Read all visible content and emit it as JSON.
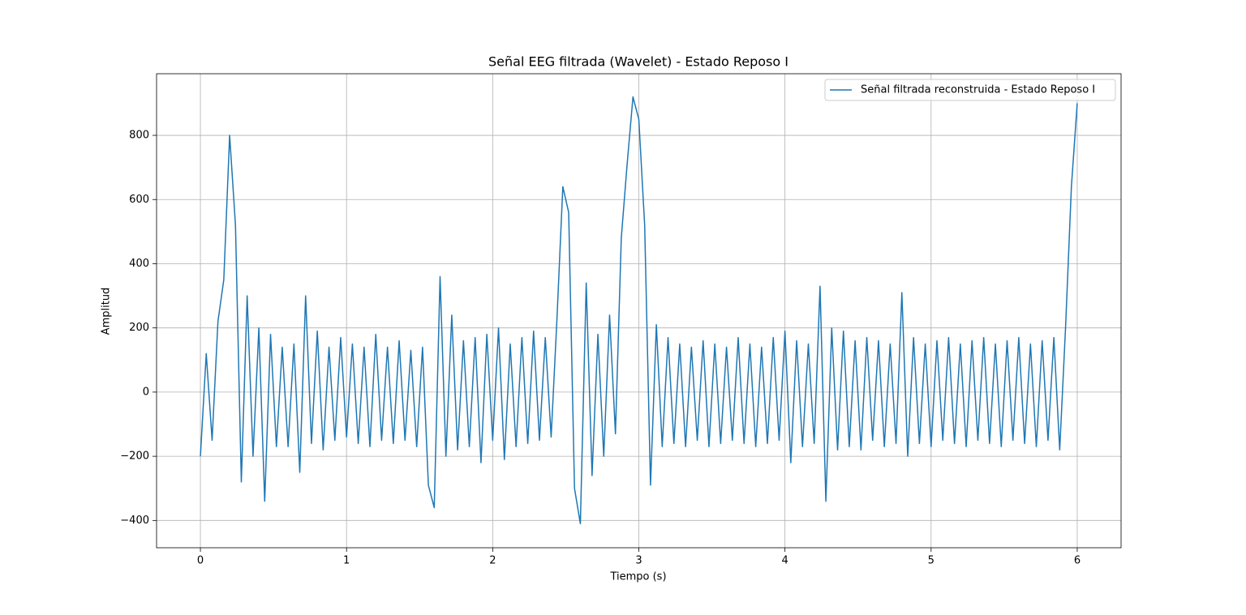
{
  "chart_data": {
    "type": "line",
    "title": "Señal EEG filtrada (Wavelet) - Estado Reposo I",
    "x_label": "Tiempo (s)",
    "y_label": "Amplitud",
    "x": [
      0,
      0.04,
      0.08,
      0.12,
      0.16,
      0.2,
      0.24,
      0.28,
      0.32,
      0.36,
      0.4,
      0.44,
      0.48,
      0.52,
      0.56,
      0.6,
      0.64,
      0.68,
      0.72,
      0.76,
      0.8,
      0.84,
      0.88,
      0.92,
      0.96,
      1,
      1.04,
      1.08,
      1.12,
      1.16,
      1.2,
      1.24,
      1.28,
      1.32,
      1.36,
      1.4,
      1.44,
      1.48,
      1.52,
      1.56,
      1.6,
      1.64,
      1.68,
      1.72,
      1.76,
      1.8,
      1.84,
      1.88,
      1.92,
      1.96,
      2,
      2.04,
      2.08,
      2.12,
      2.16,
      2.2,
      2.24,
      2.28,
      2.32,
      2.36,
      2.4,
      2.44,
      2.48,
      2.52,
      2.56,
      2.6,
      2.64,
      2.68,
      2.72,
      2.76,
      2.8,
      2.84,
      2.88,
      2.92,
      2.96,
      3,
      3.04,
      3.08,
      3.12,
      3.16,
      3.2,
      3.24,
      3.28,
      3.32,
      3.36,
      3.4,
      3.44,
      3.48,
      3.52,
      3.56,
      3.6,
      3.64,
      3.68,
      3.72,
      3.76,
      3.8,
      3.84,
      3.88,
      3.92,
      3.96,
      4,
      4.04,
      4.08,
      4.12,
      4.16,
      4.2,
      4.24,
      4.28,
      4.32,
      4.36,
      4.4,
      4.44,
      4.48,
      4.52,
      4.56,
      4.6,
      4.64,
      4.68,
      4.72,
      4.76,
      4.8,
      4.84,
      4.88,
      4.92,
      4.96,
      5,
      5.04,
      5.08,
      5.12,
      5.16,
      5.2,
      5.24,
      5.28,
      5.32,
      5.36,
      5.4,
      5.44,
      5.48,
      5.52,
      5.56,
      5.6,
      5.64,
      5.68,
      5.72,
      5.76,
      5.8,
      5.84,
      5.88,
      5.92,
      5.96,
      6
    ],
    "series": [
      {
        "name": "Señal filtrada reconstruida - Estado Reposo I",
        "color": "#1f77b4",
        "values": [
          -200,
          120,
          -150,
          220,
          350,
          800,
          520,
          -280,
          300,
          -200,
          200,
          -340,
          180,
          -170,
          140,
          -170,
          150,
          -250,
          300,
          -160,
          190,
          -180,
          140,
          -150,
          170,
          -140,
          150,
          -160,
          140,
          -170,
          180,
          -150,
          140,
          -160,
          160,
          -150,
          130,
          -170,
          140,
          -290,
          -360,
          360,
          -200,
          240,
          -180,
          160,
          -170,
          170,
          -220,
          180,
          -150,
          200,
          -210,
          150,
          -170,
          170,
          -160,
          190,
          -150,
          170,
          -140,
          230,
          640,
          560,
          -300,
          -410,
          340,
          -260,
          180,
          -200,
          240,
          -130,
          480,
          710,
          920,
          850,
          520,
          -290,
          210,
          -170,
          170,
          -160,
          150,
          -170,
          140,
          -150,
          160,
          -170,
          150,
          -160,
          140,
          -150,
          170,
          -160,
          150,
          -170,
          140,
          -160,
          170,
          -150,
          190,
          -220,
          160,
          -170,
          150,
          -160,
          330,
          -340,
          200,
          -180,
          190,
          -170,
          160,
          -180,
          170,
          -150,
          160,
          -170,
          150,
          -160,
          310,
          -200,
          170,
          -160,
          150,
          -170,
          160,
          -150,
          170,
          -160,
          150,
          -170,
          160,
          -150,
          170,
          -160,
          150,
          -170,
          160,
          -150,
          170,
          -160,
          150,
          -170,
          160,
          -150,
          170,
          -180,
          200,
          640,
          900
        ]
      }
    ],
    "xlim": [
      -0.3,
      6.3
    ],
    "ylim": [
      -485,
      992
    ],
    "xticks": [
      0,
      1,
      2,
      3,
      4,
      5,
      6
    ],
    "yticks": [
      {
        "value": -400,
        "label": "−400"
      },
      {
        "value": -200,
        "label": "−200"
      },
      0,
      200,
      400,
      600,
      800
    ],
    "grid": true,
    "legend": "upper right"
  }
}
